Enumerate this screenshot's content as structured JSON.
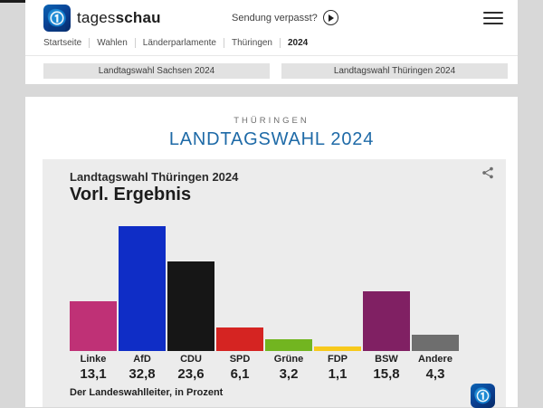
{
  "header": {
    "brand": {
      "regular": "tages",
      "bold": "schau"
    },
    "sendung_verpasst": "Sendung verpasst?",
    "icons": {
      "menu": "hamburger-icon",
      "play": "play-icon",
      "logo": "tagesschau-globe-logo"
    }
  },
  "breadcrumb": {
    "items": [
      "Startseite",
      "Wahlen",
      "Länderparlamente",
      "Thüringen",
      "2024"
    ]
  },
  "nav_buttons": [
    {
      "label": "Landtagswahl Sachsen 2024"
    },
    {
      "label": "Landtagswahl Thüringen 2024"
    }
  ],
  "main": {
    "kicker": "THÜRINGEN",
    "title": "LANDTAGSWAHL 2024",
    "title_color": "#1e6aa7"
  },
  "chart_card": {
    "subtitle": "Landtagswahl Thüringen 2024",
    "title": "Vorl. Ergebnis",
    "source": "Der Landeswahlleiter, in Prozent",
    "bg": "#ececec",
    "share_icon": "share-icon"
  },
  "chart_data": {
    "type": "bar",
    "title": "Vorl. Ergebnis",
    "subtitle": "Landtagswahl Thüringen 2024",
    "categories": [
      "Linke",
      "AfD",
      "CDU",
      "SPD",
      "Grüne",
      "FDP",
      "BSW",
      "Andere"
    ],
    "values": [
      13.1,
      32.8,
      23.6,
      6.1,
      3.2,
      1.1,
      15.8,
      4.3
    ],
    "value_labels": [
      "13,1",
      "32,8",
      "23,6",
      "6,1",
      "3,2",
      "1,1",
      "15,8",
      "4,3"
    ],
    "colors": [
      "#bf3176",
      "#0f2dc6",
      "#161616",
      "#d52422",
      "#72b520",
      "#f7c91c",
      "#802063",
      "#6e6e6e"
    ],
    "unit": "Prozent",
    "source": "Der Landeswahlleiter, in Prozent",
    "ylim": [
      0,
      35
    ],
    "grid": false,
    "legend": "none"
  }
}
